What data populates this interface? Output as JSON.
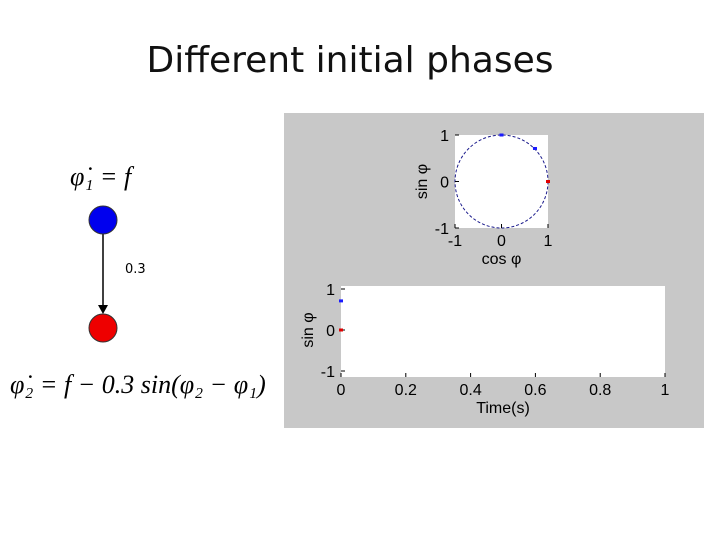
{
  "title": "Different initial phases",
  "equation_1": "φ̇₁ = f",
  "equation_2": "φ̇₂ = f − 0.3 sin(φ₂ − φ₁)",
  "edge_label": "0.3",
  "chart_data": [
    {
      "type": "scatter",
      "xlabel": "cos φ",
      "ylabel": "sin φ",
      "xlim": [
        -1,
        1
      ],
      "ylim": [
        -1,
        1
      ],
      "xticks": [
        -1,
        0,
        1
      ],
      "yticks": [
        -1,
        0,
        1
      ],
      "series": [
        {
          "color": "#1a1aff",
          "x": [
            0,
            0.72
          ],
          "values": [
            1,
            0.71
          ]
        },
        {
          "color": "#e00000",
          "x": [
            1
          ],
          "values": [
            0
          ]
        }
      ]
    },
    {
      "type": "scatter",
      "xlabel": "Time(s)",
      "ylabel": "sin φ",
      "xlim": [
        0,
        1
      ],
      "ylim": [
        -1,
        1
      ],
      "xticks": [
        0,
        0.2,
        0.4,
        0.6,
        0.8,
        1
      ],
      "yticks": [
        -1,
        0,
        1
      ],
      "series": [
        {
          "color": "#1a1aff",
          "x": [
            0
          ],
          "values": [
            0.71
          ]
        },
        {
          "color": "#e00000",
          "x": [
            0
          ],
          "values": [
            0
          ]
        }
      ]
    }
  ]
}
